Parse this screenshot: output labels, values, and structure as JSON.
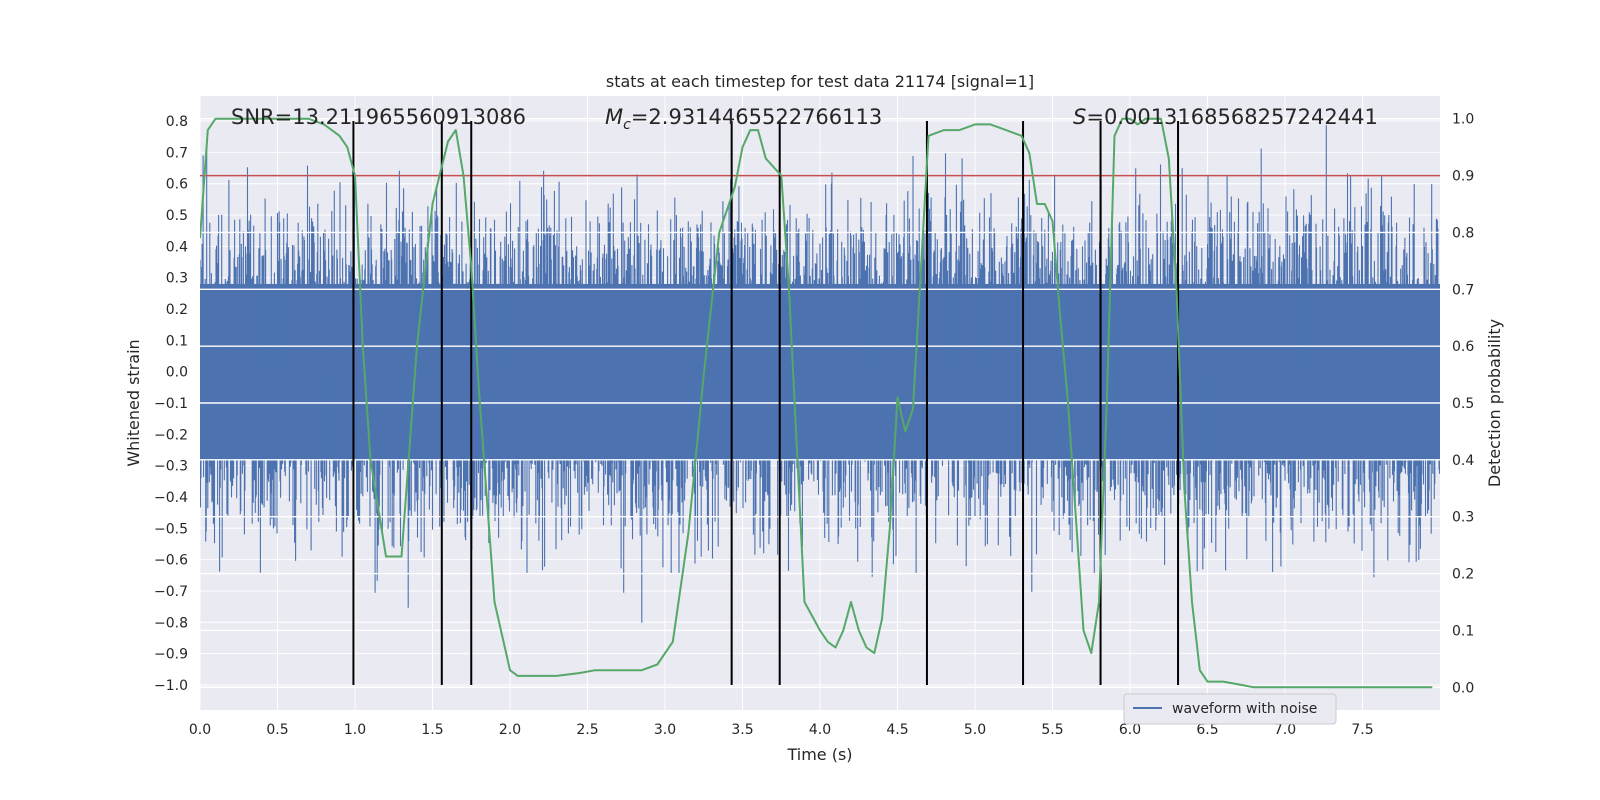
{
  "chart_data": {
    "type": "line",
    "title": "stats at each timestep for test data 21174 [signal=1]",
    "xlabel": "Time (s)",
    "ylabel": "Whitened strain",
    "y2label": "Detection probability",
    "xlim": [
      0.0,
      8.0
    ],
    "ylim": [
      -1.08,
      0.88
    ],
    "y2lim": [
      -0.04,
      1.04
    ],
    "xticks": [
      "0.0",
      "0.5",
      "1.0",
      "1.5",
      "2.0",
      "2.5",
      "3.0",
      "3.5",
      "4.0",
      "4.5",
      "5.0",
      "5.5",
      "6.0",
      "6.5",
      "7.0",
      "7.5"
    ],
    "yticks": [
      "0.8",
      "0.7",
      "0.6",
      "0.5",
      "0.4",
      "0.3",
      "0.2",
      "0.1",
      "0.0",
      "−0.1",
      "−0.2",
      "−0.3",
      "−0.4",
      "−0.5",
      "−0.6",
      "−0.7",
      "−0.8",
      "−0.9",
      "−1.0"
    ],
    "y2ticks": [
      "1.0",
      "0.9",
      "0.8",
      "0.7",
      "0.6",
      "0.5",
      "0.4",
      "0.3",
      "0.2",
      "0.1",
      "0.0"
    ],
    "grid": true,
    "legend_position": "lower-center",
    "annotations": {
      "snr": "SNR=13.211965560913086",
      "mc_symbol": "M",
      "mc_sub": "c",
      "mc_value": "=2.9314465522766113",
      "s_symbol": "S",
      "s_value": "=0.0013168568257242441"
    },
    "threshold": {
      "y2": 0.9,
      "color": "#c44e52"
    },
    "vlines": [
      0.99,
      1.56,
      1.75,
      3.43,
      3.74,
      4.69,
      5.31,
      5.81,
      6.31
    ],
    "vline_range": [
      -1.0,
      0.8
    ],
    "series": [
      {
        "name": "waveform with noise",
        "color": "#4c72b0",
        "core_amplitude": 0.28,
        "peak_envelope": 0.48
      },
      {
        "color": "#55a868",
        "axis": "y2",
        "x": [
          0.0,
          0.05,
          0.1,
          0.2,
          0.3,
          0.4,
          0.5,
          0.6,
          0.7,
          0.8,
          0.9,
          0.95,
          1.0,
          1.05,
          1.1,
          1.2,
          1.3,
          1.4,
          1.5,
          1.6,
          1.65,
          1.7,
          1.75,
          1.8,
          1.9,
          2.0,
          2.05,
          2.1,
          2.2,
          2.3,
          2.45,
          2.55,
          2.65,
          2.75,
          2.85,
          2.95,
          3.05,
          3.15,
          3.25,
          3.35,
          3.45,
          3.5,
          3.55,
          3.6,
          3.65,
          3.75,
          3.8,
          3.9,
          4.0,
          4.05,
          4.1,
          4.15,
          4.2,
          4.25,
          4.3,
          4.35,
          4.4,
          4.45,
          4.5,
          4.55,
          4.6,
          4.7,
          4.8,
          4.9,
          5.0,
          5.1,
          5.2,
          5.3,
          5.35,
          5.4,
          5.45,
          5.5,
          5.55,
          5.6,
          5.65,
          5.7,
          5.75,
          5.8,
          5.85,
          5.9,
          5.95,
          6.0,
          6.05,
          6.1,
          6.15,
          6.2,
          6.25,
          6.3,
          6.35,
          6.4,
          6.45,
          6.5,
          6.55,
          6.6,
          6.7,
          6.8,
          6.9,
          7.0,
          7.5,
          7.95
        ],
        "values": [
          0.79,
          0.98,
          1.0,
          1.0,
          1.0,
          1.0,
          1.0,
          1.0,
          1.0,
          0.99,
          0.97,
          0.95,
          0.9,
          0.6,
          0.4,
          0.23,
          0.23,
          0.6,
          0.85,
          0.96,
          0.98,
          0.9,
          0.74,
          0.52,
          0.15,
          0.03,
          0.02,
          0.02,
          0.02,
          0.02,
          0.025,
          0.03,
          0.03,
          0.03,
          0.03,
          0.04,
          0.08,
          0.27,
          0.55,
          0.8,
          0.88,
          0.95,
          0.98,
          0.98,
          0.93,
          0.9,
          0.7,
          0.15,
          0.1,
          0.08,
          0.07,
          0.1,
          0.15,
          0.1,
          0.07,
          0.06,
          0.12,
          0.28,
          0.51,
          0.45,
          0.49,
          0.97,
          0.98,
          0.98,
          0.99,
          0.99,
          0.98,
          0.97,
          0.94,
          0.85,
          0.85,
          0.82,
          0.65,
          0.5,
          0.3,
          0.1,
          0.06,
          0.15,
          0.5,
          0.97,
          1.0,
          1.0,
          0.99,
          1.0,
          1.0,
          1.0,
          0.93,
          0.7,
          0.35,
          0.15,
          0.03,
          0.01,
          0.01,
          0.01,
          0.005,
          0.0,
          0.0,
          0.0,
          0.0,
          0.0
        ]
      }
    ]
  }
}
